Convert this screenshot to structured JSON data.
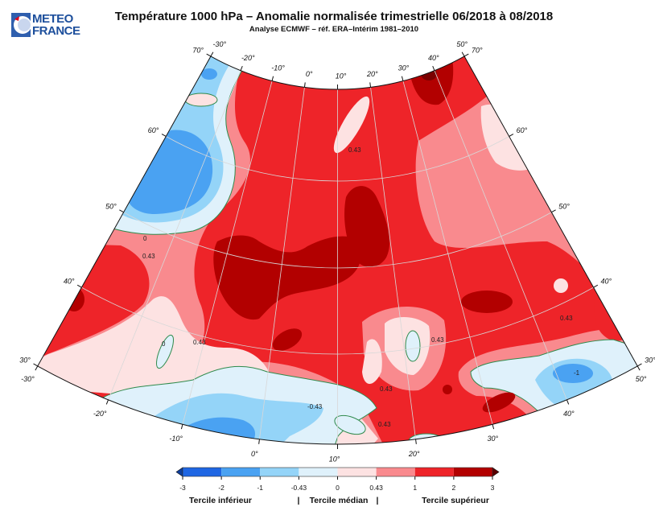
{
  "header": {
    "logo": {
      "line1": "METEO",
      "line2": "FRANCE"
    },
    "title": "Température 1000 hPa – Anomalie normalisée trimestrielle 06/2018 à 08/2018",
    "subtitle": "Analyse ECMWF – réf. ERA–Intérim 1981–2010"
  },
  "map": {
    "projection": "conic",
    "lon_range": [
      -30,
      50
    ],
    "lat_range": [
      30,
      70
    ],
    "graticule": {
      "top_lon_labels": [
        {
          "lon": -30,
          "text": "-30°"
        },
        {
          "lon": -20,
          "text": "-20°"
        },
        {
          "lon": -10,
          "text": "-10°"
        },
        {
          "lon": 0,
          "text": "0°"
        },
        {
          "lon": 10,
          "text": "10°"
        },
        {
          "lon": 20,
          "text": "20°"
        },
        {
          "lon": 30,
          "text": "30°"
        },
        {
          "lon": 40,
          "text": "40°"
        },
        {
          "lon": 50,
          "text": "50°"
        }
      ],
      "bottom_lon_labels": [
        {
          "lon": -30,
          "text": "-30°"
        },
        {
          "lon": -20,
          "text": "-20°"
        },
        {
          "lon": -10,
          "text": "-10°"
        },
        {
          "lon": 0,
          "text": "0°"
        },
        {
          "lon": 10,
          "text": "10°"
        },
        {
          "lon": 20,
          "text": "20°"
        },
        {
          "lon": 30,
          "text": "30°"
        },
        {
          "lon": 40,
          "text": "40°"
        },
        {
          "lon": 50,
          "text": "50°"
        }
      ],
      "left_lat_labels": [
        {
          "lat": 30,
          "text": "30°"
        },
        {
          "lat": 40,
          "text": "40°"
        },
        {
          "lat": 50,
          "text": "50°"
        },
        {
          "lat": 60,
          "text": "60°"
        },
        {
          "lat": 70,
          "text": "70°"
        }
      ],
      "right_lat_labels": [
        {
          "lat": 30,
          "text": "30°"
        },
        {
          "lat": 40,
          "text": "40°"
        },
        {
          "lat": 50,
          "text": "50°"
        },
        {
          "lat": 60,
          "text": "60°"
        },
        {
          "lat": 70,
          "text": "70°"
        }
      ]
    },
    "contour_labels": [
      "0",
      "0.43",
      "0",
      "0.43",
      "0.43",
      "0.43",
      "-0.43",
      "0.43",
      "0.43",
      "-1",
      "0.43"
    ],
    "contour_color": "#2f8a4c"
  },
  "legend": {
    "ticks": [
      "-3",
      "-2",
      "-1",
      "-0.43",
      "0",
      "0.43",
      "1",
      "2",
      "3"
    ],
    "colors": [
      "#1f66e3",
      "#4aa2f2",
      "#94d4f8",
      "#dff1fb",
      "#fde2e2",
      "#f98a8e",
      "#ee2429",
      "#b20000"
    ],
    "under_color": "#0e3f9e",
    "over_color": "#5a0000",
    "extreme_color": "#7a0000",
    "terciles": {
      "lower": "Tercile inférieur",
      "sep1": "|",
      "median": "Tercile médian",
      "sep2": "|",
      "upper": "Tercile supérieur"
    }
  }
}
